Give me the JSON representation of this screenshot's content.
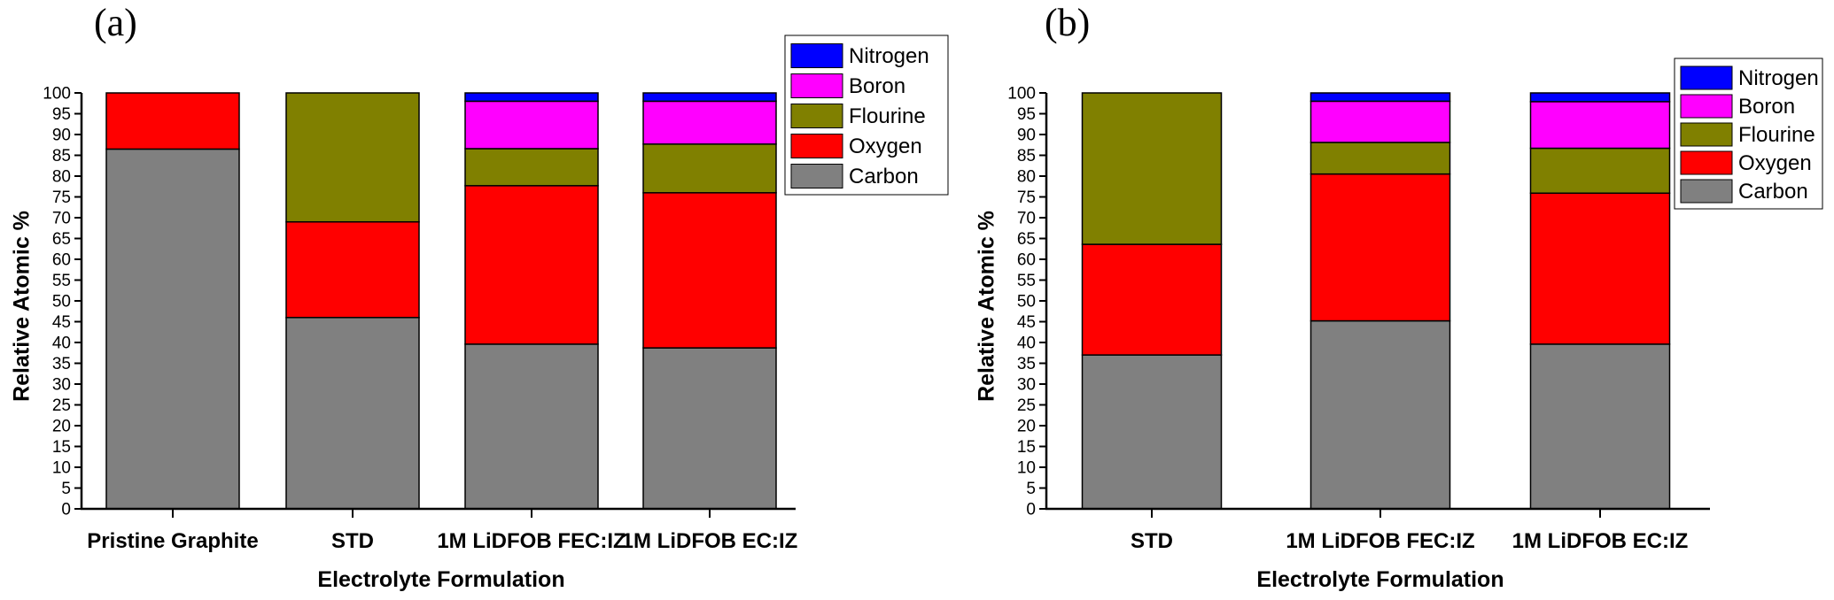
{
  "colors": {
    "Nitrogen": "#0000ff",
    "Boron": "#ff00ff",
    "Flourine": "#808000",
    "Oxygen": "#ff0000",
    "Carbon": "#808080"
  },
  "chart_data": [
    {
      "type": "bar",
      "stacked": true,
      "panel_label": "(a)",
      "categories": [
        "Pristine Graphite",
        "STD",
        "1M LiDFOB FEC:IZ",
        "1M LiDFOB EC:IZ"
      ],
      "series": [
        {
          "name": "Carbon",
          "values": [
            86.5,
            46,
            39.6,
            38.7
          ]
        },
        {
          "name": "Oxygen",
          "values": [
            13.5,
            23,
            38.1,
            37.3
          ]
        },
        {
          "name": "Flourine",
          "values": [
            0,
            31,
            8.9,
            11.7
          ]
        },
        {
          "name": "Boron",
          "values": [
            0,
            0,
            11.4,
            10.3
          ]
        },
        {
          "name": "Nitrogen",
          "values": [
            0,
            0,
            2,
            2
          ]
        }
      ],
      "legend_order": [
        "Nitrogen",
        "Boron",
        "Flourine",
        "Oxygen",
        "Carbon"
      ],
      "legend_position": "top-right",
      "xlabel": "Electrolyte Formulation",
      "ylabel": "Relative Atomic %",
      "ylim": [
        0,
        100
      ],
      "yticks": [
        0,
        5,
        10,
        15,
        20,
        25,
        30,
        35,
        40,
        45,
        50,
        55,
        60,
        65,
        70,
        75,
        80,
        85,
        90,
        95,
        100
      ],
      "grid": false
    },
    {
      "type": "bar",
      "stacked": true,
      "panel_label": "(b)",
      "categories": [
        "STD",
        "1M LiDFOB FEC:IZ",
        "1M LiDFOB EC:IZ"
      ],
      "series": [
        {
          "name": "Carbon",
          "values": [
            37,
            45.2,
            39.6
          ]
        },
        {
          "name": "Oxygen",
          "values": [
            26.6,
            35.3,
            36.3
          ]
        },
        {
          "name": "Flourine",
          "values": [
            36.4,
            7.6,
            10.8
          ]
        },
        {
          "name": "Boron",
          "values": [
            0,
            9.9,
            11.2
          ]
        },
        {
          "name": "Nitrogen",
          "values": [
            0,
            2,
            2.1
          ]
        }
      ],
      "legend_order": [
        "Nitrogen",
        "Boron",
        "Flourine",
        "Oxygen",
        "Carbon"
      ],
      "legend_position": "top-right",
      "xlabel": "Electrolyte Formulation",
      "ylabel": "Relative Atomic %",
      "ylim": [
        0,
        100
      ],
      "yticks": [
        0,
        5,
        10,
        15,
        20,
        25,
        30,
        35,
        40,
        45,
        50,
        55,
        60,
        65,
        70,
        75,
        80,
        85,
        90,
        95,
        100
      ],
      "grid": false
    }
  ]
}
